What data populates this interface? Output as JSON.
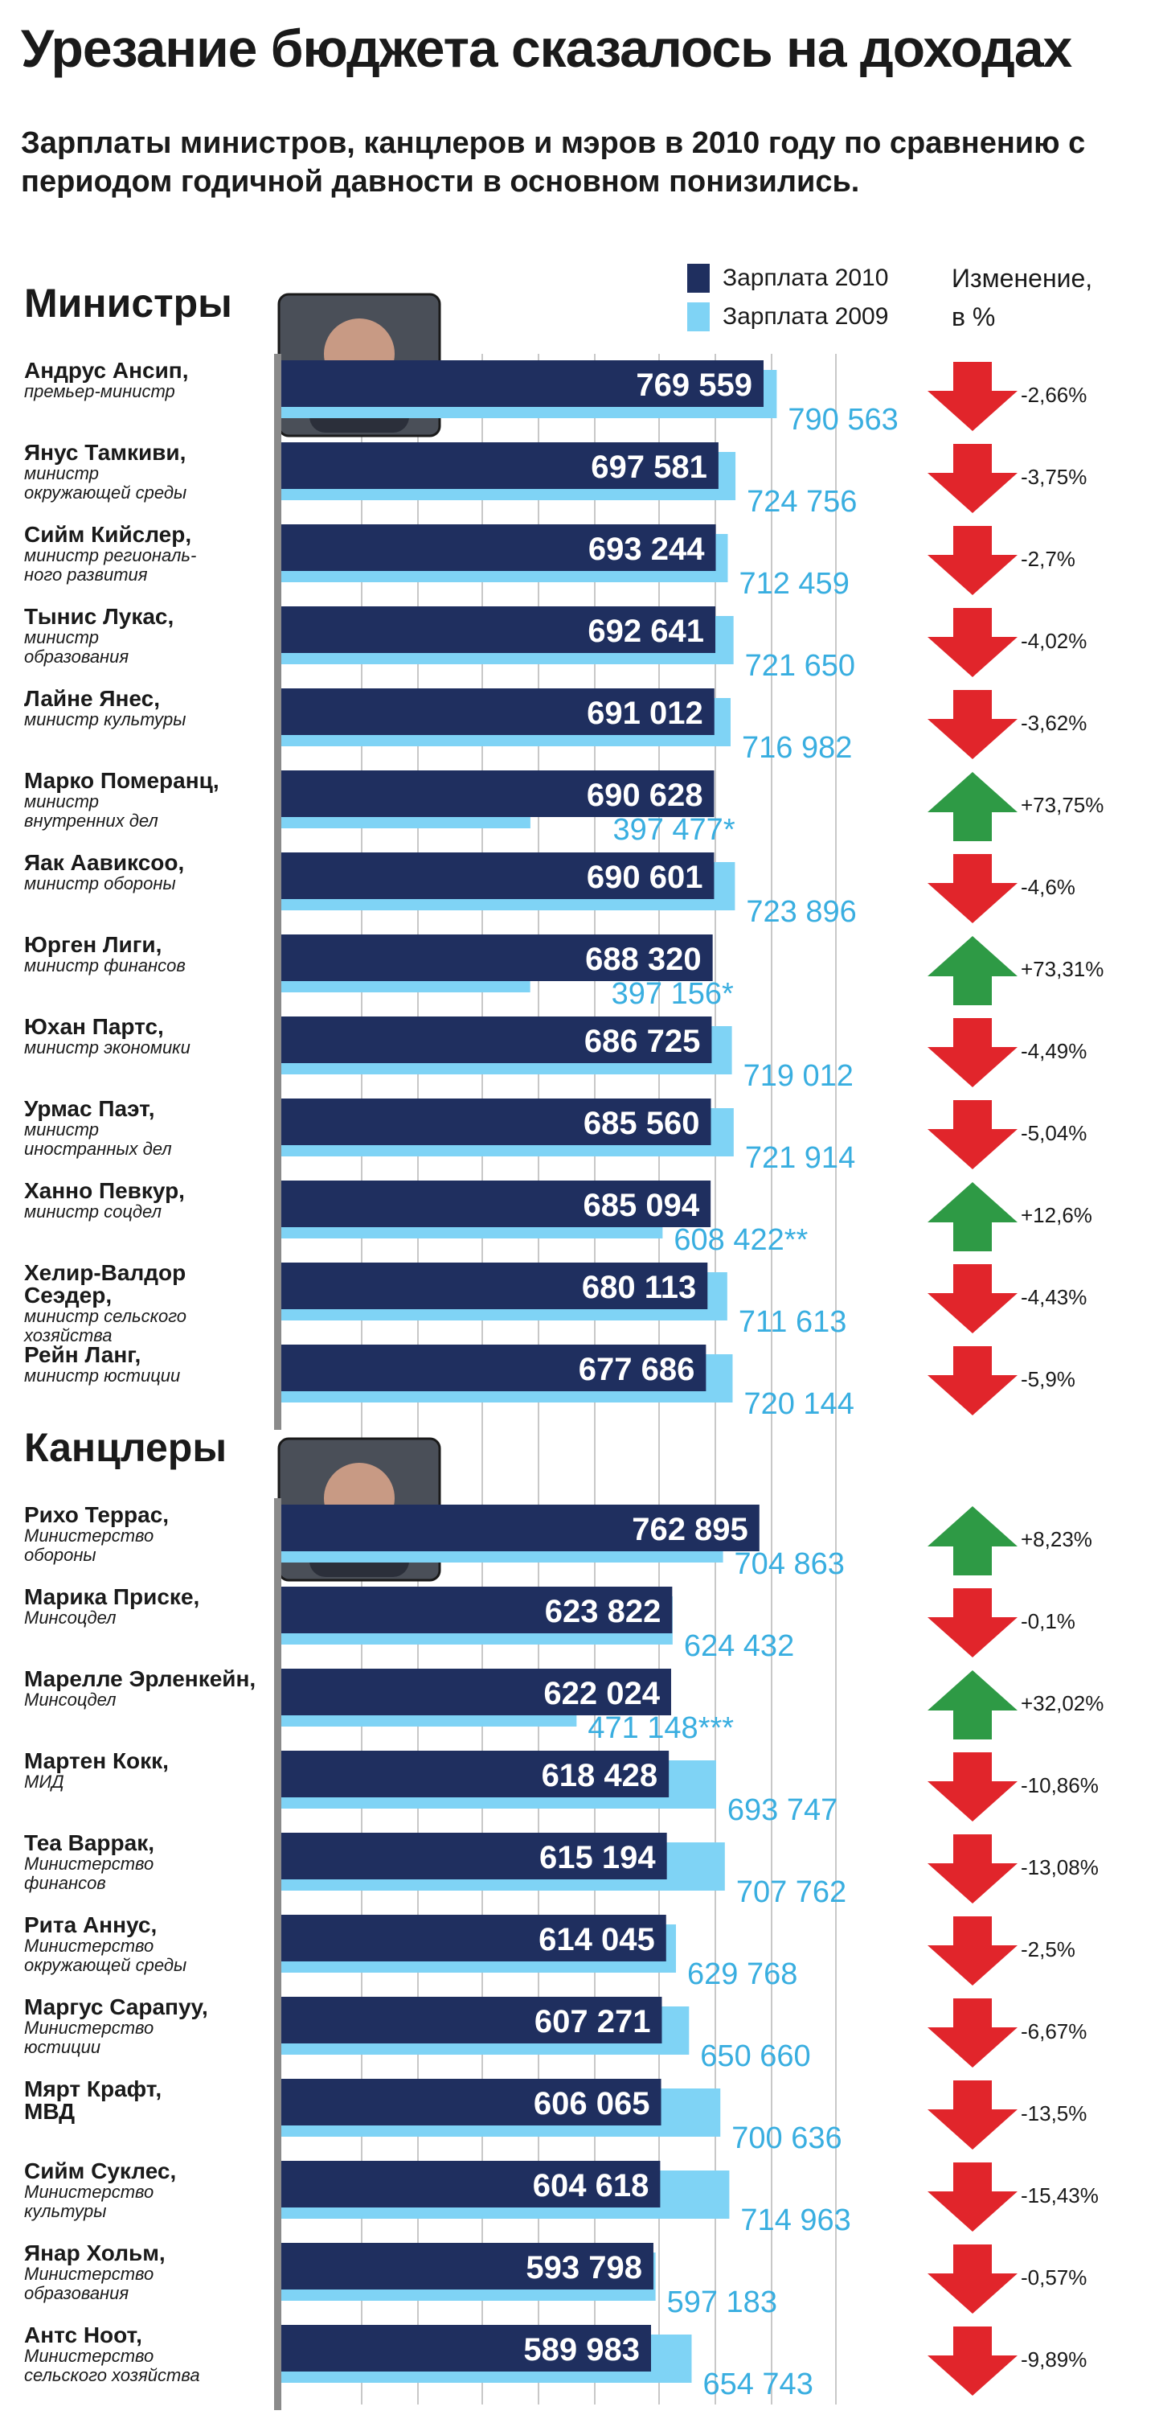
{
  "title": "Урезание бюджета сказалось на доходах",
  "subtitle": "Зарплаты министров, канцлеров и мэров в 2010 году по сравнению с периодом годичной давности в основном понизились.",
  "legend": {
    "label_2010": "Зарплата 2010",
    "label_2009": "Зарплата 2009",
    "change_line1": "Изменение,",
    "change_line2": "в %"
  },
  "colors": {
    "bar_2010": "#1f2f5f",
    "bar_2009": "#7fd3f5",
    "value_2009": "#39aee0",
    "down": "#e1252b",
    "up": "#2e9a45",
    "axis": "#8a8a8a",
    "grid": "#c8c8c8"
  },
  "chart_data": {
    "type": "bar",
    "orientation": "horizontal",
    "title": "Урезание бюджета сказалось на доходах",
    "series": [
      "Зарплата 2010",
      "Зарплата 2009"
    ],
    "units": "",
    "groups": [
      {
        "title": "Министры",
        "rows": [
          {
            "name": "Андрус Ансип,",
            "role": [
              "премьер-министр"
            ],
            "v2010": 769559,
            "v2009": 790563,
            "v2009_label": "790 563",
            "change": "-2,66%",
            "dir": "down"
          },
          {
            "name": "Янус Тамкиви,",
            "role": [
              "министр",
              "окружающей среды"
            ],
            "v2010": 697581,
            "v2009": 724756,
            "v2009_label": "724 756",
            "change": "-3,75%",
            "dir": "down"
          },
          {
            "name": "Сийм Кийслер,",
            "role": [
              "министр региональ-",
              "ного развития"
            ],
            "v2010": 693244,
            "v2009": 712459,
            "v2009_label": "712 459",
            "change": "-2,7%",
            "dir": "down"
          },
          {
            "name": "Тынис Лукас,",
            "role": [
              "министр",
              "образования"
            ],
            "v2010": 692641,
            "v2009": 721650,
            "v2009_label": "721 650",
            "change": "-4,02%",
            "dir": "down"
          },
          {
            "name": "Лайне Янес,",
            "role": [
              "министр культуры"
            ],
            "v2010": 691012,
            "v2009": 716982,
            "v2009_label": "716 982",
            "change": "-3,62%",
            "dir": "down"
          },
          {
            "name": "Марко Померанц,",
            "role": [
              "министр",
              "внутренних дел"
            ],
            "v2010": 690628,
            "v2009": 397477,
            "v2009_label": "397 477*",
            "change": "+73,75%",
            "dir": "up"
          },
          {
            "name": "Яак Аавиксоо,",
            "role": [
              "министр обороны"
            ],
            "v2010": 690601,
            "v2009": 723896,
            "v2009_label": "723 896",
            "change": "-4,6%",
            "dir": "down"
          },
          {
            "name": "Юрген Лиги,",
            "role": [
              "министр финансов"
            ],
            "v2010": 688320,
            "v2009": 397156,
            "v2009_label": "397 156*",
            "change": "+73,31%",
            "dir": "up"
          },
          {
            "name": "Юхан Партс,",
            "role": [
              "министр экономики"
            ],
            "v2010": 686725,
            "v2009": 719012,
            "v2009_label": "719 012",
            "change": "-4,49%",
            "dir": "down"
          },
          {
            "name": "Урмас Паэт,",
            "role": [
              "министр",
              "иностранных дел"
            ],
            "v2010": 685560,
            "v2009": 721914,
            "v2009_label": "721 914",
            "change": "-5,04%",
            "dir": "down"
          },
          {
            "name": "Ханно Певкур,",
            "role": [
              "министр соцдел"
            ],
            "v2010": 685094,
            "v2009": 608422,
            "v2009_label": "608 422**",
            "change": "+12,6%",
            "dir": "up"
          },
          {
            "name": "Хелир-Валдор",
            "name2": "Сеэдер,",
            "role": [
              "министр сельского",
              "хозяйства"
            ],
            "v2010": 680113,
            "v2009": 711613,
            "v2009_label": "711 613",
            "change": "-4,43%",
            "dir": "down"
          },
          {
            "name": "Рейн Ланг,",
            "role": [
              "министр юстиции"
            ],
            "v2010": 677686,
            "v2009": 720144,
            "v2009_label": "720 144",
            "change": "-5,9%",
            "dir": "down"
          }
        ]
      },
      {
        "title": "Канцлеры",
        "rows": [
          {
            "name": "Рихо Террас,",
            "role": [
              "Министерство",
              "обороны"
            ],
            "v2010": 762895,
            "v2009": 704863,
            "v2009_label": "704 863",
            "change": "+8,23%",
            "dir": "up"
          },
          {
            "name": "Марика Приске,",
            "role": [
              "Минсоцдел"
            ],
            "v2010": 623822,
            "v2009": 624432,
            "v2009_label": "624 432",
            "change": "-0,1%",
            "dir": "down"
          },
          {
            "name": "Марелле Эрленкейн,",
            "role": [
              "Минсоцдел"
            ],
            "v2010": 622024,
            "v2009": 471148,
            "v2009_label": "471 148***",
            "change": "+32,02%",
            "dir": "up"
          },
          {
            "name": "Мартен Кокк,",
            "role": [
              "МИД"
            ],
            "v2010": 618428,
            "v2009": 693747,
            "v2009_label": "693 747",
            "change": "-10,86%",
            "dir": "down"
          },
          {
            "name": "Теа Варрак,",
            "role": [
              "Министерство",
              "финансов"
            ],
            "v2010": 615194,
            "v2009": 707762,
            "v2009_label": "707 762",
            "change": "-13,08%",
            "dir": "down"
          },
          {
            "name": "Рита Аннус,",
            "role": [
              "Министерство",
              "окружающей среды"
            ],
            "v2010": 614045,
            "v2009": 629768,
            "v2009_label": "629 768",
            "change": "-2,5%",
            "dir": "down"
          },
          {
            "name": "Маргус Сарапуу,",
            "role": [
              "Министерство",
              "юстиции"
            ],
            "v2010": 607271,
            "v2009": 650660,
            "v2009_label": "650 660",
            "change": "-6,67%",
            "dir": "down"
          },
          {
            "name": "Мярт Крафт,",
            "role_plain": "МВД",
            "role": [],
            "v2010": 606065,
            "v2009": 700636,
            "v2009_label": "700 636",
            "change": "-13,5%",
            "dir": "down"
          },
          {
            "name": "Сийм Суклес,",
            "role": [
              "Министерство",
              "культуры"
            ],
            "v2010": 604618,
            "v2009": 714963,
            "v2009_label": "714 963",
            "change": "-15,43%",
            "dir": "down"
          },
          {
            "name": "Янар Хольм,",
            "role": [
              "Министерство",
              "образования"
            ],
            "v2010": 593798,
            "v2009": 597183,
            "v2009_label": "597 183",
            "change": "-0,57%",
            "dir": "down"
          },
          {
            "name": "Антс Ноот,",
            "role": [
              "Министерство",
              "сельского хозяйства"
            ],
            "v2010": 589983,
            "v2009": 654743,
            "v2009_label": "654 743",
            "change": "-9,89%",
            "dir": "down"
          }
        ]
      }
    ]
  }
}
